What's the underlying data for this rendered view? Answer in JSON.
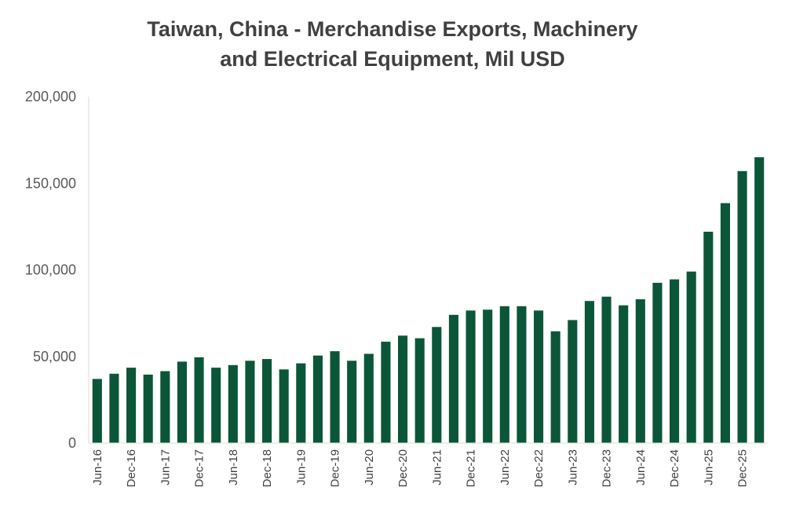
{
  "chart_data": {
    "type": "bar",
    "title_line1": "Taiwan, China - Merchandise Exports, Machinery",
    "title_line2": "and Electrical Equipment, Mil USD",
    "xlabel": "",
    "ylabel": "",
    "ylim": [
      0,
      200000
    ],
    "yticks": [
      "0",
      "50,000",
      "100,000",
      "150,000",
      "200,000"
    ],
    "ytick_values": [
      0,
      50000,
      100000,
      150000,
      200000
    ],
    "grid": false,
    "legend": "none",
    "bar_color": "#0B5639",
    "axis_color": "#D9D9D9",
    "categories": [
      "Jun-16",
      "Sep-16",
      "Dec-16",
      "Mar-17",
      "Jun-17",
      "Sep-17",
      "Dec-17",
      "Mar-18",
      "Jun-18",
      "Sep-18",
      "Dec-18",
      "Mar-19",
      "Jun-19",
      "Sep-19",
      "Dec-19",
      "Mar-20",
      "Jun-20",
      "Sep-20",
      "Dec-20",
      "Mar-21",
      "Jun-21",
      "Sep-21",
      "Dec-21",
      "Mar-22",
      "Jun-22",
      "Sep-22",
      "Dec-22",
      "Mar-23",
      "Jun-23",
      "Sep-23",
      "Dec-23",
      "Mar-24",
      "Jun-24",
      "Sep-24",
      "Dec-24",
      "Mar-25",
      "Jun-25",
      "Sep-25",
      "Dec-25",
      "Mar-26"
    ],
    "tick_labels": [
      "Jun-16",
      "",
      "Dec-16",
      "",
      "Jun-17",
      "",
      "Dec-17",
      "",
      "Jun-18",
      "",
      "Dec-18",
      "",
      "Jun-19",
      "",
      "Dec-19",
      "",
      "Jun-20",
      "",
      "Dec-20",
      "",
      "Jun-21",
      "",
      "Dec-21",
      "",
      "Jun-22",
      "",
      "Dec-22",
      "",
      "Jun-23",
      "",
      "Dec-23",
      "",
      "Jun-24",
      "",
      "Dec-24",
      "",
      "Jun-25",
      "",
      "Dec-25",
      ""
    ],
    "values": [
      37000,
      40000,
      43500,
      39500,
      41500,
      47000,
      49500,
      43500,
      45000,
      47500,
      48500,
      42500,
      46000,
      50500,
      53000,
      47500,
      51500,
      58500,
      62000,
      60500,
      67000,
      74000,
      76500,
      77000,
      79000,
      79000,
      76500,
      64500,
      71000,
      82000,
      84500,
      79500,
      83000,
      92500,
      94500,
      99000,
      122000,
      138500,
      157000,
      165000
    ]
  }
}
